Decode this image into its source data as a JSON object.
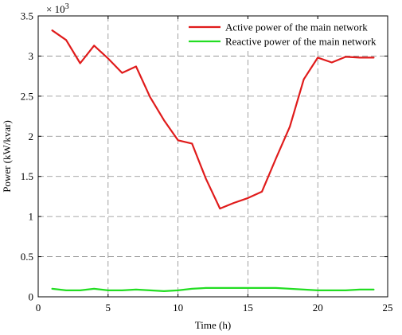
{
  "chart_data": {
    "type": "line",
    "xlabel": "Time (h)",
    "ylabel": "Power (kW/kvar)",
    "y_multiplier": "× 10",
    "y_multiplier_exp": "3",
    "xlim": [
      0,
      25
    ],
    "ylim": [
      0,
      3.5
    ],
    "xticks": [
      0,
      5,
      10,
      15,
      20,
      25
    ],
    "yticks": [
      0,
      0.5,
      1,
      1.5,
      2,
      2.5,
      3,
      3.5
    ],
    "grid": true,
    "legend_position": "top-right",
    "x": [
      1,
      2,
      3,
      4,
      5,
      6,
      7,
      8,
      9,
      10,
      11,
      12,
      13,
      14,
      15,
      16,
      17,
      18,
      19,
      20,
      21,
      22,
      23,
      24
    ],
    "series": [
      {
        "name": "Active power of the main network",
        "color": "#e01b1b",
        "values": [
          3.32,
          3.2,
          2.91,
          3.13,
          2.97,
          2.79,
          2.87,
          2.49,
          2.2,
          1.95,
          1.91,
          1.47,
          1.1,
          1.17,
          1.23,
          1.31,
          1.72,
          2.12,
          2.71,
          2.98,
          2.92,
          2.99,
          2.98,
          2.98
        ]
      },
      {
        "name": "Reactive power of the main network",
        "color": "#22dd22",
        "values": [
          0.1,
          0.08,
          0.08,
          0.1,
          0.08,
          0.08,
          0.09,
          0.08,
          0.07,
          0.08,
          0.1,
          0.11,
          0.11,
          0.11,
          0.11,
          0.11,
          0.11,
          0.1,
          0.09,
          0.08,
          0.08,
          0.08,
          0.09,
          0.09
        ]
      }
    ]
  }
}
